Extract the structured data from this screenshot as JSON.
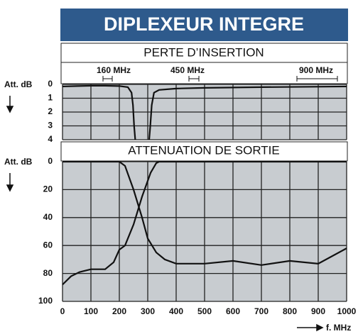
{
  "title": "DIPLEXEUR INTEGRE",
  "bands": [
    "160 MHz",
    "450 MHz",
    "900 MHz"
  ],
  "chart_data": [
    {
      "type": "line",
      "title": "PERTE D’INSERTION",
      "ylabel": "Att. dB",
      "xlim": [
        0,
        1000
      ],
      "ylim": [
        4,
        0
      ],
      "yticks": [
        0,
        1,
        2,
        3,
        4
      ],
      "grid": true,
      "series": [
        {
          "color": "#111111",
          "x": [
            0,
            50,
            100,
            150,
            200,
            230,
            243,
            248,
            252,
            256
          ],
          "values": [
            0.15,
            0.12,
            0.1,
            0.1,
            0.12,
            0.2,
            0.6,
            1.5,
            3,
            4
          ]
        },
        {
          "color": "#111111",
          "x": [
            305,
            309,
            314,
            322,
            340,
            400,
            500,
            700,
            1000
          ],
          "values": [
            4,
            3,
            1.5,
            0.6,
            0.4,
            0.3,
            0.25,
            0.2,
            0.15
          ]
        }
      ]
    },
    {
      "type": "line",
      "title": "ATTENUATION DE SORTIE",
      "ylabel": "Att. dB",
      "xlabel": "f. MHz",
      "xlim": [
        0,
        1000
      ],
      "xticks": [
        0,
        100,
        200,
        300,
        400,
        500,
        600,
        700,
        800,
        900,
        1000
      ],
      "ylim": [
        100,
        0
      ],
      "yticks": [
        0,
        20,
        40,
        60,
        80,
        100
      ],
      "grid": true,
      "series": [
        {
          "color": "#111111",
          "x": [
            0,
            100,
            200,
            220,
            250,
            280,
            300,
            330,
            360,
            400,
            500,
            600,
            700,
            800,
            900,
            1000
          ],
          "values": [
            0,
            0,
            0,
            3,
            20,
            40,
            55,
            65,
            70,
            73,
            73,
            71,
            74,
            71,
            73,
            62
          ]
        },
        {
          "color": "#111111",
          "x": [
            0,
            30,
            60,
            100,
            150,
            180,
            200,
            220,
            250,
            280,
            310,
            330,
            340,
            1000
          ],
          "values": [
            88,
            82,
            79,
            77,
            77,
            72,
            63,
            60,
            45,
            25,
            8,
            1,
            0,
            0
          ]
        }
      ]
    }
  ]
}
